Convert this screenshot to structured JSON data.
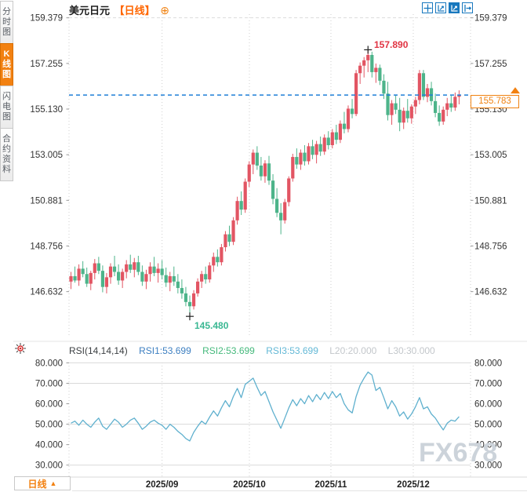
{
  "header": {
    "symbol": "美元日元",
    "period": "【日线】",
    "add_indicator_icon": "⊕"
  },
  "toolbar": {
    "icons": [
      {
        "name": "crosshair",
        "active": false
      },
      {
        "name": "zoom-x",
        "active": false
      },
      {
        "name": "zoom-y",
        "active": true
      },
      {
        "name": "exit-chart",
        "active": false
      }
    ]
  },
  "sidebar": {
    "items": [
      {
        "label": "分时图",
        "active": false
      },
      {
        "label": "K线图",
        "active": true
      },
      {
        "label": "闪电图",
        "active": false
      },
      {
        "label": "合约资料",
        "active": false
      }
    ]
  },
  "annotations": {
    "high_label": "157.890",
    "low_label": "145.480",
    "last_price_label": "155.783"
  },
  "rsi_header": {
    "name": "RSI(14,14,14)",
    "rsi1": "RSI1:53.699",
    "rsi2": "RSI2:53.699",
    "rsi3": "RSI3:53.699",
    "l20": "L20:20.000",
    "l30": "L30:30.000"
  },
  "bottom": {
    "period_tab": "日线",
    "tab_arrow": "▲",
    "watermark": "FX678"
  },
  "colors": {
    "accent": "#f28111",
    "up": "#e25563",
    "down": "#4db48a",
    "price_line": "#1e7fd6",
    "rsi_line": "#5fb0ce",
    "high_text": "#e13443",
    "low_text": "#39b792",
    "grid": "#d9d9d9",
    "axis_text": "#333333",
    "toolbar_blue": "#1878be"
  },
  "chart_data": [
    {
      "type": "candlestick",
      "title": "美元日元 日线",
      "y_ticks": [
        "159.379",
        "157.255",
        "155.130",
        "153.005",
        "150.881",
        "148.756",
        "146.632"
      ],
      "x_axis": {
        "labels": [
          "2025/09",
          "2025/10",
          "2025/11",
          "2025/12"
        ],
        "positions": [
          23,
          45.05,
          65.64,
          86.43
        ]
      },
      "last_price": {
        "label": "155.783",
        "value": 155.783
      },
      "high_annotation": {
        "index": 75,
        "price": 157.89,
        "label": "157.890"
      },
      "low_annotation": {
        "index": 30,
        "price": 145.48,
        "label": "145.480"
      },
      "ohlc": [
        [
          147.1,
          147.55,
          146.75,
          147.35
        ],
        [
          147.35,
          147.8,
          147.05,
          147.15
        ],
        [
          147.15,
          147.9,
          146.9,
          147.7
        ],
        [
          147.7,
          148.05,
          147.3,
          147.45
        ],
        [
          147.45,
          147.75,
          146.85,
          147.0
        ],
        [
          147.0,
          147.6,
          146.7,
          147.5
        ],
        [
          147.5,
          148.15,
          147.2,
          147.95
        ],
        [
          147.95,
          148.25,
          147.45,
          147.6
        ],
        [
          147.6,
          147.85,
          146.6,
          146.85
        ],
        [
          146.85,
          147.5,
          146.55,
          147.3
        ],
        [
          147.3,
          147.95,
          147.0,
          147.8
        ],
        [
          147.8,
          148.3,
          147.35,
          147.55
        ],
        [
          147.55,
          147.9,
          146.95,
          147.15
        ],
        [
          147.15,
          147.7,
          146.8,
          147.55
        ],
        [
          147.55,
          148.1,
          147.25,
          147.9
        ],
        [
          147.9,
          148.35,
          147.5,
          147.65
        ],
        [
          147.65,
          148.2,
          147.3,
          148.0
        ],
        [
          148.0,
          148.3,
          147.4,
          147.55
        ],
        [
          147.55,
          147.85,
          146.9,
          147.1
        ],
        [
          147.1,
          147.65,
          146.75,
          147.45
        ],
        [
          147.45,
          148.0,
          147.1,
          147.8
        ],
        [
          147.8,
          148.25,
          147.35,
          147.5
        ],
        [
          147.5,
          147.95,
          147.05,
          147.7
        ],
        [
          147.7,
          148.1,
          147.2,
          147.4
        ],
        [
          147.4,
          147.75,
          146.85,
          147.05
        ],
        [
          147.05,
          147.55,
          146.65,
          147.35
        ],
        [
          147.35,
          147.8,
          146.9,
          147.1
        ],
        [
          147.1,
          147.45,
          146.55,
          146.8
        ],
        [
          146.8,
          147.2,
          146.3,
          146.55
        ],
        [
          146.55,
          146.85,
          145.95,
          146.15
        ],
        [
          146.15,
          146.45,
          145.48,
          145.95
        ],
        [
          145.95,
          146.7,
          145.8,
          146.55
        ],
        [
          146.55,
          147.25,
          146.4,
          147.1
        ],
        [
          147.1,
          147.6,
          146.8,
          147.45
        ],
        [
          147.45,
          147.8,
          147.0,
          147.2
        ],
        [
          147.2,
          148.0,
          147.05,
          147.85
        ],
        [
          147.85,
          148.45,
          147.55,
          148.25
        ],
        [
          148.25,
          148.6,
          147.8,
          148.0
        ],
        [
          148.0,
          148.85,
          147.85,
          148.7
        ],
        [
          148.7,
          149.45,
          148.5,
          149.3
        ],
        [
          149.3,
          149.7,
          148.75,
          148.95
        ],
        [
          148.95,
          150.1,
          148.8,
          149.95
        ],
        [
          149.95,
          151.05,
          149.75,
          150.85
        ],
        [
          150.85,
          151.3,
          150.2,
          150.45
        ],
        [
          150.45,
          151.9,
          150.3,
          151.75
        ],
        [
          151.75,
          152.7,
          151.5,
          152.55
        ],
        [
          152.55,
          153.25,
          152.1,
          153.1
        ],
        [
          153.1,
          153.4,
          152.3,
          152.5
        ],
        [
          152.5,
          152.9,
          151.8,
          152.0
        ],
        [
          152.0,
          152.75,
          151.7,
          152.6
        ],
        [
          152.6,
          152.95,
          151.6,
          151.8
        ],
        [
          151.8,
          152.1,
          150.7,
          150.95
        ],
        [
          150.95,
          151.45,
          150.1,
          150.3
        ],
        [
          150.3,
          150.75,
          149.3,
          149.95
        ],
        [
          149.95,
          150.95,
          149.8,
          150.8
        ],
        [
          150.8,
          152.0,
          150.6,
          151.9
        ],
        [
          151.9,
          153.05,
          151.75,
          152.9
        ],
        [
          152.9,
          153.3,
          152.35,
          152.55
        ],
        [
          152.55,
          153.25,
          152.3,
          153.1
        ],
        [
          153.1,
          153.45,
          152.5,
          152.7
        ],
        [
          152.7,
          153.55,
          152.55,
          153.4
        ],
        [
          153.4,
          153.7,
          152.8,
          153.0
        ],
        [
          153.0,
          153.65,
          152.6,
          153.5
        ],
        [
          153.5,
          153.85,
          152.95,
          153.15
        ],
        [
          153.15,
          153.95,
          153.0,
          153.8
        ],
        [
          153.8,
          154.1,
          153.25,
          153.45
        ],
        [
          153.45,
          154.2,
          153.3,
          154.05
        ],
        [
          154.05,
          154.4,
          153.5,
          153.7
        ],
        [
          153.7,
          154.6,
          153.55,
          154.45
        ],
        [
          154.45,
          155.0,
          154.0,
          154.2
        ],
        [
          154.2,
          155.3,
          154.05,
          155.15
        ],
        [
          155.15,
          155.6,
          154.7,
          154.9
        ],
        [
          154.9,
          156.95,
          154.8,
          156.8
        ],
        [
          156.8,
          157.3,
          156.3,
          157.15
        ],
        [
          157.15,
          157.55,
          156.6,
          157.4
        ],
        [
          157.4,
          157.89,
          156.85,
          157.65
        ],
        [
          157.65,
          157.8,
          156.6,
          156.85
        ],
        [
          156.85,
          157.25,
          156.35,
          157.05
        ],
        [
          157.05,
          157.2,
          156.25,
          156.45
        ],
        [
          156.45,
          156.75,
          155.6,
          155.85
        ],
        [
          155.85,
          156.4,
          154.6,
          154.85
        ],
        [
          154.85,
          155.55,
          154.4,
          155.4
        ],
        [
          155.4,
          155.8,
          154.9,
          155.1
        ],
        [
          155.1,
          155.65,
          154.1,
          154.5
        ],
        [
          154.5,
          155.2,
          154.2,
          155.05
        ],
        [
          155.05,
          155.6,
          154.5,
          154.7
        ],
        [
          154.7,
          155.35,
          154.45,
          155.25
        ],
        [
          155.25,
          155.7,
          154.9,
          155.55
        ],
        [
          155.55,
          156.95,
          155.35,
          156.8
        ],
        [
          156.8,
          156.95,
          155.55,
          155.7
        ],
        [
          155.7,
          156.3,
          155.45,
          156.1
        ],
        [
          156.1,
          156.4,
          155.3,
          155.5
        ],
        [
          155.5,
          155.85,
          154.75,
          154.95
        ],
        [
          154.95,
          155.3,
          154.35,
          154.55
        ],
        [
          154.55,
          155.25,
          154.4,
          155.1
        ],
        [
          155.1,
          155.65,
          154.8,
          155.4
        ],
        [
          155.4,
          155.75,
          155.0,
          155.2
        ],
        [
          155.2,
          155.9,
          155.05,
          155.7
        ],
        [
          155.7,
          156.0,
          155.35,
          155.78
        ]
      ]
    },
    {
      "type": "line",
      "name": "RSI(14,14,14)",
      "y_ticks": [
        "80.000",
        "70.000",
        "60.000",
        "50.000",
        "40.000",
        "30.000"
      ],
      "gridlines": [
        80,
        70,
        50,
        30
      ],
      "values": [
        50.5,
        51.5,
        49.5,
        52,
        50,
        48.5,
        51,
        53,
        49,
        47.5,
        50,
        52.5,
        51,
        48.5,
        50,
        52,
        53,
        50.5,
        47.5,
        49,
        51,
        52,
        50.5,
        49.5,
        47.5,
        50,
        48.5,
        46.5,
        45,
        43,
        41.8,
        46,
        49,
        51.5,
        50,
        53.5,
        56.5,
        54,
        58,
        61.5,
        58.5,
        63.5,
        67.5,
        63,
        69.5,
        71,
        72.5,
        68,
        64,
        66,
        61,
        56,
        52,
        48,
        53,
        58,
        62,
        59,
        62.5,
        60,
        64,
        61,
        64.5,
        62,
        65.5,
        62.5,
        66,
        63,
        65,
        60,
        57,
        55.5,
        63.5,
        69,
        72.5,
        75.5,
        74,
        66.5,
        68,
        63,
        57.5,
        61.5,
        58.5,
        54,
        56,
        52.5,
        55,
        58.5,
        63,
        57.5,
        58.5,
        55,
        53,
        50,
        47.2,
        50.5,
        52,
        51.5,
        53.7
      ]
    }
  ]
}
